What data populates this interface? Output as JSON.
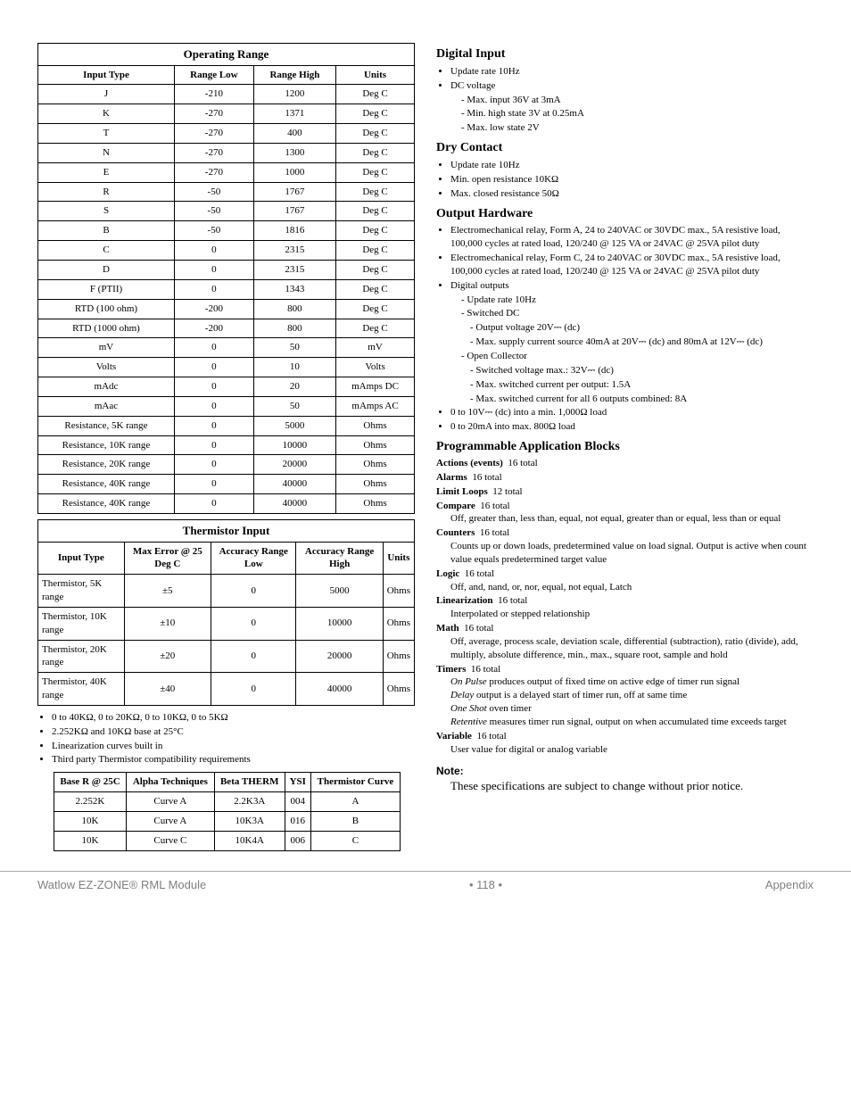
{
  "operating_range": {
    "title": "Operating Range",
    "headers": [
      "Input Type",
      "Range Low",
      "Range High",
      "Units"
    ],
    "rows": [
      [
        "J",
        "-210",
        "1200",
        "Deg C"
      ],
      [
        "K",
        "-270",
        "1371",
        "Deg C"
      ],
      [
        "T",
        "-270",
        "400",
        "Deg C"
      ],
      [
        "N",
        "-270",
        "1300",
        "Deg C"
      ],
      [
        "E",
        "-270",
        "1000",
        "Deg C"
      ],
      [
        "R",
        "-50",
        "1767",
        "Deg C"
      ],
      [
        "S",
        "-50",
        "1767",
        "Deg C"
      ],
      [
        "B",
        "-50",
        "1816",
        "Deg C"
      ],
      [
        "C",
        "0",
        "2315",
        "Deg C"
      ],
      [
        "D",
        "0",
        "2315",
        "Deg C"
      ],
      [
        "F (PTII)",
        "0",
        "1343",
        "Deg C"
      ],
      [
        "RTD (100 ohm)",
        "-200",
        "800",
        "Deg C"
      ],
      [
        "RTD (1000 ohm)",
        "-200",
        "800",
        "Deg C"
      ],
      [
        "mV",
        "0",
        "50",
        "mV"
      ],
      [
        "Volts",
        "0",
        "10",
        "Volts"
      ],
      [
        "mAdc",
        "0",
        "20",
        "mAmps DC"
      ],
      [
        "mAac",
        "0",
        "50",
        "mAmps AC"
      ],
      [
        "Resistance, 5K range",
        "0",
        "5000",
        "Ohms"
      ],
      [
        "Resistance, 10K range",
        "0",
        "10000",
        "Ohms"
      ],
      [
        "Resistance, 20K range",
        "0",
        "20000",
        "Ohms"
      ],
      [
        "Resistance, 40K range",
        "0",
        "40000",
        "Ohms"
      ],
      [
        "Resistance, 40K range",
        "0",
        "40000",
        "Ohms"
      ]
    ]
  },
  "thermistor_input": {
    "title": "Thermistor Input",
    "headers": [
      "Input Type",
      "Max Error @ 25 Deg C",
      "Accuracy Range Low",
      "Accuracy Range High",
      "Units"
    ],
    "rows": [
      [
        "Thermistor, 5K range",
        "±5",
        "0",
        "5000",
        "Ohms"
      ],
      [
        "Thermistor, 10K range",
        "±10",
        "0",
        "10000",
        "Ohms"
      ],
      [
        "Thermistor, 20K range",
        "±20",
        "0",
        "20000",
        "Ohms"
      ],
      [
        "Thermistor, 40K range",
        "±40",
        "0",
        "40000",
        "Ohms"
      ]
    ]
  },
  "thermistor_notes": [
    "0 to 40KΩ, 0 to 20KΩ, 0 to 10KΩ, 0 to 5KΩ",
    "2.252KΩ and 10KΩ base at 25°C",
    "Linearization curves built in",
    "Third party Thermistor compatibility requirements"
  ],
  "compat_table": {
    "headers": [
      "Base R @ 25C",
      "Alpha Techniques",
      "Beta THERM",
      "YSI",
      "Thermistor Curve"
    ],
    "rows": [
      [
        "2.252K",
        "Curve A",
        "2.2K3A",
        "004",
        "A"
      ],
      [
        "10K",
        "Curve A",
        "10K3A",
        "016",
        "B"
      ],
      [
        "10K",
        "Curve C",
        "10K4A",
        "006",
        "C"
      ]
    ]
  },
  "digital_input": {
    "title": "Digital Input",
    "bullets": [
      "Update rate 10Hz",
      "DC voltage"
    ],
    "sub": [
      "Max. input 36V at 3mA",
      "Min. high state 3V at 0.25mA",
      "Max. low state 2V"
    ]
  },
  "dry_contact": {
    "title": "Dry Contact",
    "bullets": [
      "Update rate 10Hz",
      "Min. open resistance 10KΩ",
      "Max. closed resistance 50Ω"
    ]
  },
  "output_hw": {
    "title": "Output Hardware",
    "bullets": [
      "Electromechanical relay, Form A, 24 to 240VAC or 30VDC max., 5A resistive load, 100,000 cycles at rated load, 120/240 @ 125 VA or 24VAC @ 25VA pilot duty",
      "Electromechanical relay, Form C, 24 to 240VAC or 30VDC max., 5A resistive load, 100,000 cycles at rated load, 120/240 @ 125 VA or 24VAC @ 25VA pilot duty",
      "Digital outputs"
    ],
    "digital_sub": [
      "Update rate 10Hz",
      "Switched DC"
    ],
    "switched_dc_sub": [
      "Output voltage 20V⎓ (dc)",
      "Max. supply current source 40mA at 20V⎓ (dc) and 80mA at 12V⎓ (dc)"
    ],
    "open_collector": "Open Collector",
    "open_collector_sub": [
      "Switched voltage max.: 32V⎓ (dc)",
      "Max. switched current per output: 1.5A",
      "Max. switched current for all 6 outputs combined: 8A"
    ],
    "tail_bullets": [
      "0 to 10V⎓ (dc) into a min. 1,000Ω load",
      "0 to 20mA into max. 800Ω load"
    ]
  },
  "pab": {
    "title": "Programmable Application Blocks",
    "actions": {
      "head": "Actions (events)",
      "val": "16 total"
    },
    "alarms": {
      "head": "Alarms",
      "val": "16 total"
    },
    "limits": {
      "head": "Limit Loops",
      "val": "12 total"
    },
    "compare": {
      "head": "Compare",
      "val": "16 total",
      "body": "Off, greater than, less than, equal, not equal, greater than or equal, less than or equal"
    },
    "counters": {
      "head": "Counters",
      "val": "16 total",
      "body": "Counts up or down loads, predetermined value on load signal. Output is active when count value equals predetermined target value"
    },
    "logic": {
      "head": "Logic",
      "val": "16 total",
      "body": "Off, and, nand, or, nor, equal, not equal, Latch"
    },
    "linearization": {
      "head": "Linearization",
      "val": "16 total",
      "body": "Interpolated or stepped relationship"
    },
    "math": {
      "head": "Math",
      "val": "16 total",
      "body": "Off, average, process scale, deviation scale, differential (subtraction), ratio (divide), add, multiply, absolute difference, min., max., square root, sample and hold"
    },
    "timers": {
      "head": "Timers",
      "val": "16 total",
      "lines": [
        {
          "i": "On Pulse",
          "t": " produces output of fixed time on active edge of timer run signal"
        },
        {
          "i": "Delay",
          "t": " output is a delayed start of timer run, off at same time"
        },
        {
          "i": "One Shot",
          "t": " oven timer"
        },
        {
          "i": "Retentive",
          "t": " measures timer run signal, output on when accumulated time exceeds target"
        }
      ]
    },
    "variable": {
      "head": "Variable",
      "val": "16 total",
      "body": "User value for digital or analog variable"
    }
  },
  "note": {
    "head": "Note:",
    "body": "These specifications are subject to change without prior notice."
  },
  "footer": {
    "left": "Watlow EZ-ZONE® RML Module",
    "center": "•  118  •",
    "right": "Appendix"
  }
}
